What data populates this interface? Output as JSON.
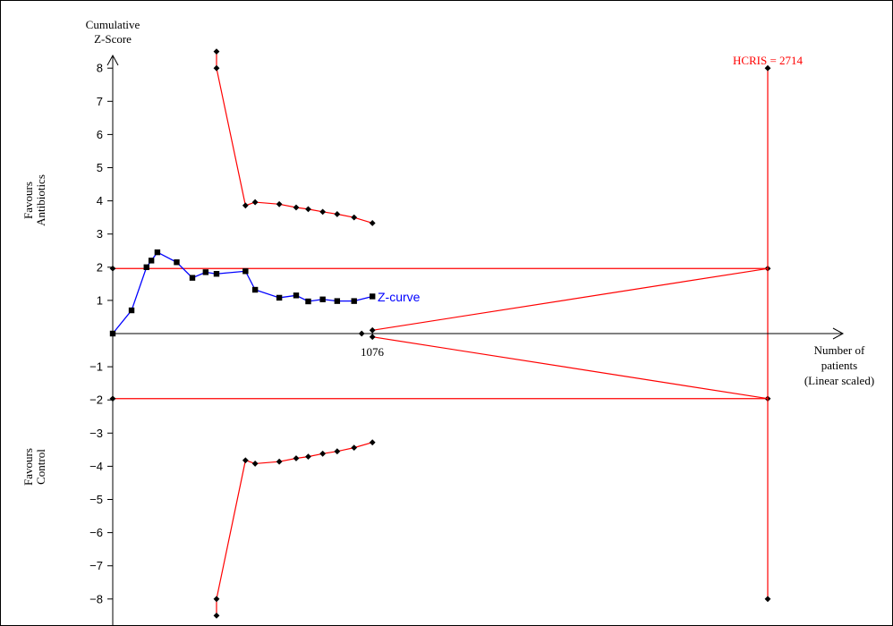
{
  "chart_data": {
    "type": "line",
    "y_axis_label_line1": "Cumulative",
    "y_axis_label_line2": "Z-Score",
    "x_axis_label_line1": "Number of",
    "x_axis_label_line2": "patients",
    "x_axis_label_line3": "(Linear scaled)",
    "y_ticks": [
      {
        "value": 8,
        "label": "8"
      },
      {
        "value": 7,
        "label": "7"
      },
      {
        "value": 6,
        "label": "6"
      },
      {
        "value": 5,
        "label": "5"
      },
      {
        "value": 4,
        "label": "4"
      },
      {
        "value": 3,
        "label": "3"
      },
      {
        "value": 2,
        "label": "2"
      },
      {
        "value": 1,
        "label": "1"
      },
      {
        "value": -1,
        "label": "−1"
      },
      {
        "value": -2,
        "label": "−2"
      },
      {
        "value": -3,
        "label": "−3"
      },
      {
        "value": -4,
        "label": "−4"
      },
      {
        "value": -5,
        "label": "−5"
      },
      {
        "value": -6,
        "label": "−6"
      },
      {
        "value": -7,
        "label": "−7"
      },
      {
        "value": -8,
        "label": "−8"
      }
    ],
    "ylim": [
      -8.5,
      8.5
    ],
    "xlim": [
      0,
      3320
    ],
    "x_marker": {
      "value": 1076,
      "label": "1076"
    },
    "favours_top_line1": "Favours",
    "favours_top_line2": "Antibiotics",
    "favours_bottom_line1": "Favours",
    "favours_bottom_line2": "Control",
    "z_curve_label": "Z-curve",
    "z_curve": [
      {
        "x": 0,
        "y": 0
      },
      {
        "x": 78,
        "y": 0.7
      },
      {
        "x": 140,
        "y": 2.0
      },
      {
        "x": 160,
        "y": 2.2
      },
      {
        "x": 185,
        "y": 2.45
      },
      {
        "x": 265,
        "y": 2.15
      },
      {
        "x": 330,
        "y": 1.68
      },
      {
        "x": 385,
        "y": 1.85
      },
      {
        "x": 430,
        "y": 1.8
      },
      {
        "x": 550,
        "y": 1.88
      },
      {
        "x": 590,
        "y": 1.32
      },
      {
        "x": 690,
        "y": 1.08
      },
      {
        "x": 760,
        "y": 1.15
      },
      {
        "x": 810,
        "y": 0.97
      },
      {
        "x": 870,
        "y": 1.03
      },
      {
        "x": 930,
        "y": 0.98
      },
      {
        "x": 1000,
        "y": 0.98
      },
      {
        "x": 1076,
        "y": 1.12
      }
    ],
    "upper_boundary": [
      {
        "x": 430,
        "y": 8.5
      },
      {
        "x": 430,
        "y": 8.0
      },
      {
        "x": 550,
        "y": 3.86
      },
      {
        "x": 590,
        "y": 3.96
      },
      {
        "x": 690,
        "y": 3.9
      },
      {
        "x": 760,
        "y": 3.8
      },
      {
        "x": 810,
        "y": 3.75
      },
      {
        "x": 870,
        "y": 3.67
      },
      {
        "x": 930,
        "y": 3.6
      },
      {
        "x": 1000,
        "y": 3.5
      },
      {
        "x": 1076,
        "y": 3.33
      }
    ],
    "lower_boundary": [
      {
        "x": 430,
        "y": -8.5
      },
      {
        "x": 430,
        "y": -8.0
      },
      {
        "x": 550,
        "y": -3.82
      },
      {
        "x": 590,
        "y": -3.92
      },
      {
        "x": 690,
        "y": -3.86
      },
      {
        "x": 760,
        "y": -3.76
      },
      {
        "x": 810,
        "y": -3.71
      },
      {
        "x": 870,
        "y": -3.62
      },
      {
        "x": 930,
        "y": -3.55
      },
      {
        "x": 1000,
        "y": -3.44
      },
      {
        "x": 1076,
        "y": -3.28
      }
    ],
    "conventional_boundary_upper": 1.96,
    "conventional_boundary_lower": -1.96,
    "futility_wedge_upper": [
      {
        "x": 1076,
        "y": 0.1
      },
      {
        "x": 2714,
        "y": 1.96
      }
    ],
    "futility_wedge_lower": [
      {
        "x": 1076,
        "y": -0.1
      },
      {
        "x": 2714,
        "y": -1.96
      }
    ],
    "hcris": {
      "value": 2714,
      "label": "HCRIS = 2714",
      "y_top": 8,
      "y_bottom": -8
    },
    "colors": {
      "z_curve": "#0000ff",
      "boundary": "#ff0000",
      "axis": "#000000",
      "hcris_label": "#ff0000"
    }
  }
}
